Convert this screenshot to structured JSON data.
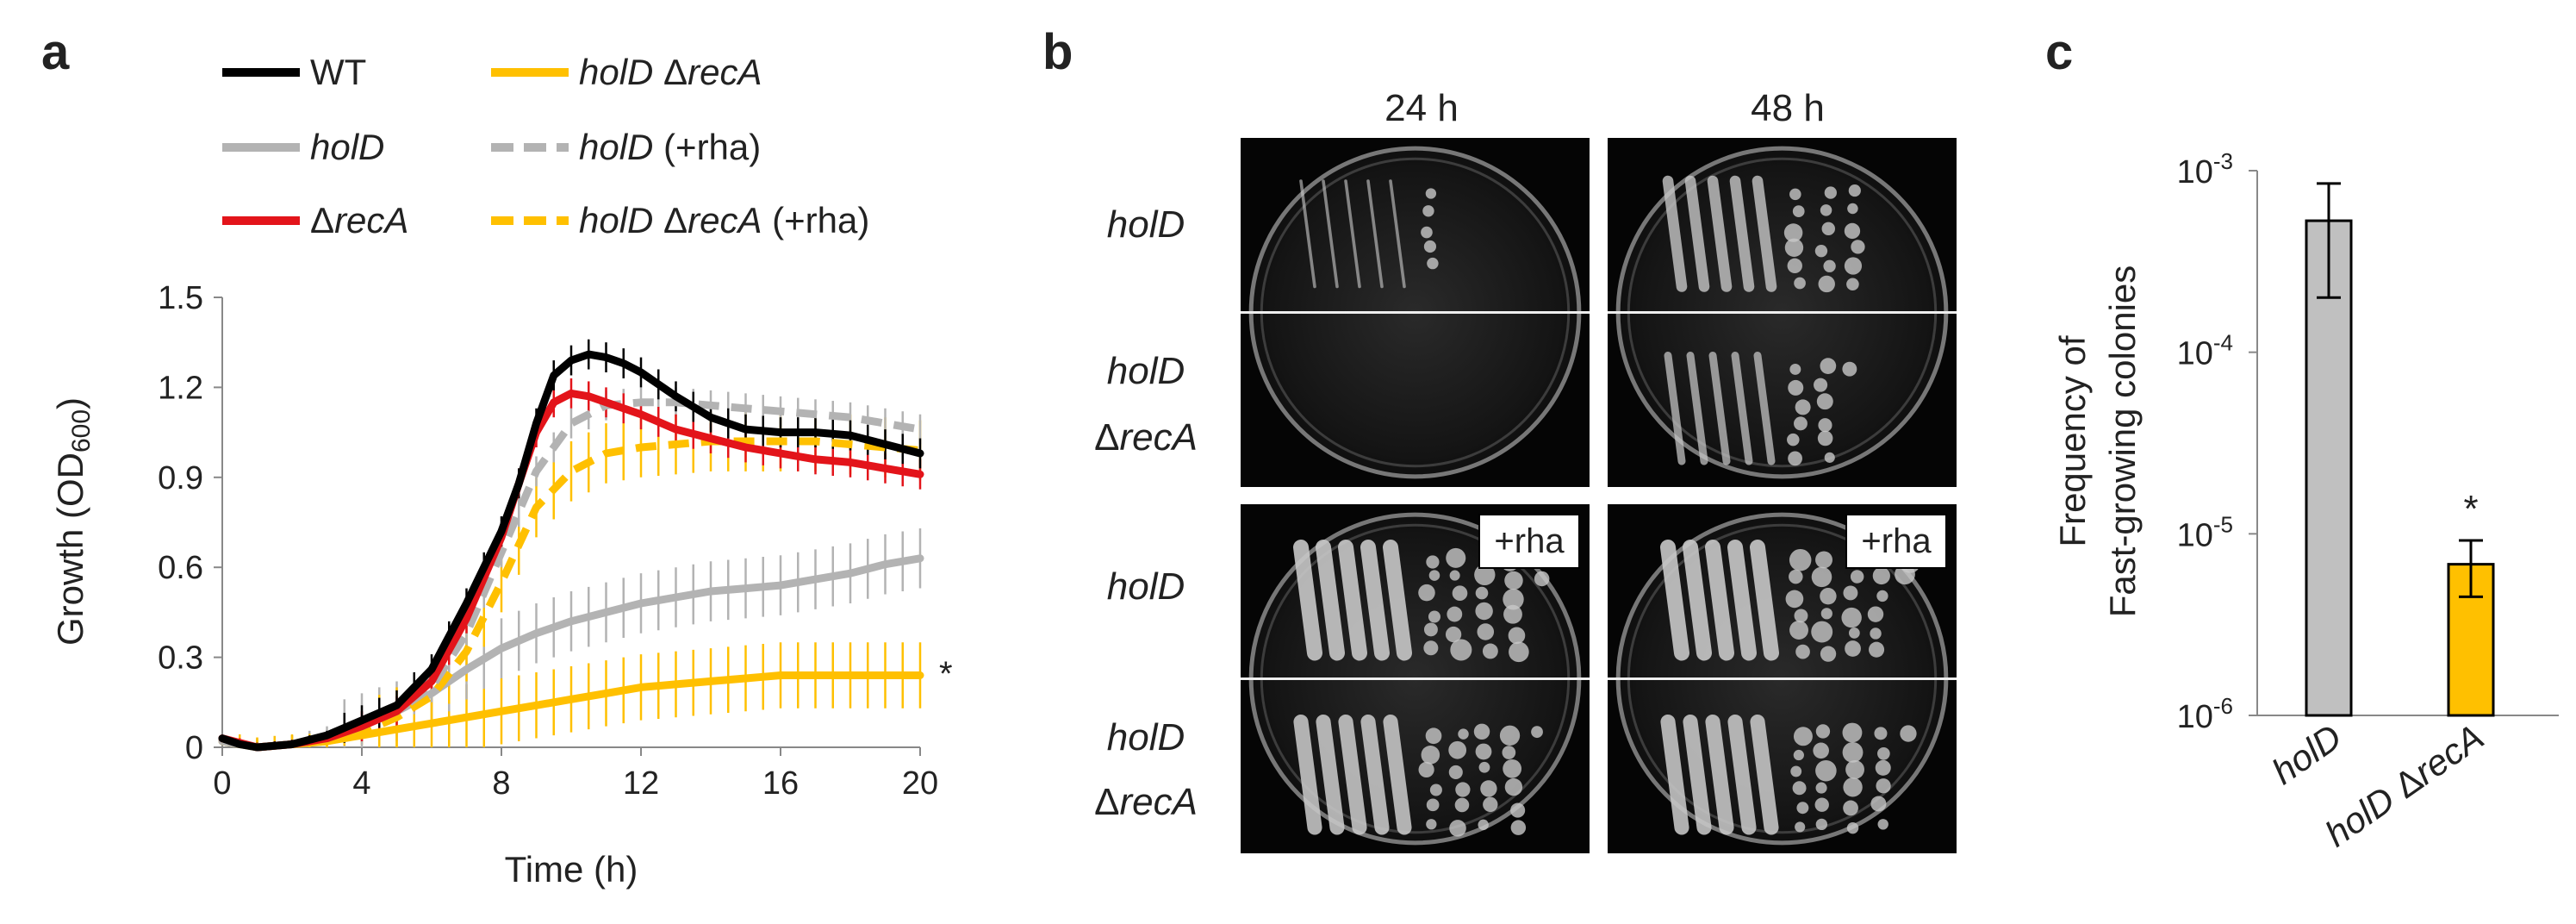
{
  "panels": {
    "a": "a",
    "b": "b",
    "c": "c"
  },
  "chart_data": [
    {
      "type": "line",
      "panel": "a",
      "xlabel": "Time (h)",
      "ylabel_main": "Growth (OD",
      "ylabel_sub": "600",
      "ylabel_close": ")",
      "xlim": [
        0,
        20
      ],
      "ylim": [
        0,
        1.5
      ],
      "xticks": [
        "0",
        "4",
        "8",
        "12",
        "16",
        "20"
      ],
      "yticks": [
        "0",
        "0.3",
        "0.6",
        "0.9",
        "1.2",
        "1.5"
      ],
      "annotation": "*",
      "legend": [
        {
          "prefix": "WT",
          "italic": "",
          "suffix": ""
        },
        {
          "prefix": "",
          "italic": "holD",
          "suffix": ""
        },
        {
          "prefix": "Δ",
          "italic": "recA",
          "suffix": ""
        },
        {
          "prefix": "",
          "italic": "holD",
          "suffix": " Δ",
          "italic2": "recA",
          "suffix2": ""
        },
        {
          "prefix": "",
          "italic": "holD",
          "suffix": " (+rha)",
          "italic2": "",
          "suffix2": ""
        },
        {
          "prefix": "",
          "italic": "holD",
          "suffix": " Δ",
          "italic2": "recA",
          "suffix2": " (+rha)"
        }
      ],
      "colors": {
        "wt": "#000000",
        "holD": "#b3b3b3",
        "recA": "#e3141a",
        "holD_recA": "#ffc000"
      },
      "series": [
        {
          "key": "wt",
          "color": "#000000",
          "dashed": false,
          "errorbar": 0.05,
          "x": [
            0,
            0.5,
            1,
            2,
            3,
            4,
            5,
            6,
            7,
            8,
            8.5,
            9,
            9.5,
            10,
            10.5,
            11,
            11.5,
            12,
            13,
            14,
            15,
            16,
            17,
            18,
            19,
            20
          ],
          "y": [
            0.03,
            0.01,
            0.0,
            0.01,
            0.04,
            0.09,
            0.14,
            0.26,
            0.48,
            0.72,
            0.88,
            1.08,
            1.24,
            1.29,
            1.31,
            1.3,
            1.28,
            1.25,
            1.17,
            1.1,
            1.06,
            1.05,
            1.05,
            1.04,
            1.01,
            0.98
          ]
        },
        {
          "key": "holD",
          "color": "#b3b3b3",
          "dashed": false,
          "errorbar": 0.1,
          "x": [
            0,
            1,
            2,
            3,
            4,
            5,
            6,
            7,
            8,
            9,
            10,
            11,
            12,
            13,
            14,
            15,
            16,
            17,
            18,
            19,
            20
          ],
          "y": [
            0.02,
            0.0,
            0.01,
            0.04,
            0.08,
            0.12,
            0.18,
            0.26,
            0.33,
            0.38,
            0.42,
            0.45,
            0.48,
            0.5,
            0.52,
            0.53,
            0.54,
            0.56,
            0.58,
            0.61,
            0.63
          ]
        },
        {
          "key": "recA",
          "color": "#e3141a",
          "dashed": false,
          "errorbar": 0.05,
          "x": [
            0,
            1,
            2,
            3,
            4,
            5,
            6,
            7,
            8,
            8.5,
            9,
            9.5,
            10,
            10.5,
            11,
            12,
            13,
            14,
            15,
            16,
            17,
            18,
            19,
            20
          ],
          "y": [
            0.03,
            0.0,
            0.01,
            0.03,
            0.07,
            0.12,
            0.22,
            0.43,
            0.7,
            0.88,
            1.05,
            1.15,
            1.18,
            1.17,
            1.15,
            1.11,
            1.06,
            1.03,
            1.0,
            0.98,
            0.96,
            0.95,
            0.93,
            0.91
          ]
        },
        {
          "key": "holD_recA",
          "color": "#ffc000",
          "dashed": false,
          "errorbar": 0.11,
          "x": [
            0,
            1,
            2,
            3,
            4,
            5,
            6,
            7,
            8,
            9,
            10,
            11,
            12,
            13,
            14,
            15,
            16,
            17,
            18,
            19,
            20
          ],
          "y": [
            0.02,
            0.0,
            0.01,
            0.02,
            0.04,
            0.06,
            0.08,
            0.1,
            0.12,
            0.14,
            0.16,
            0.18,
            0.2,
            0.21,
            0.22,
            0.23,
            0.24,
            0.24,
            0.24,
            0.24,
            0.24
          ]
        },
        {
          "key": "holD_rha",
          "color": "#b3b3b3",
          "dashed": true,
          "errorbar": 0.05,
          "x": [
            0,
            1,
            2,
            3,
            4,
            5,
            6,
            7,
            8,
            9,
            10,
            11,
            12,
            13,
            14,
            15,
            16,
            17,
            18,
            19,
            20
          ],
          "y": [
            0.02,
            0.0,
            0.01,
            0.03,
            0.07,
            0.12,
            0.2,
            0.38,
            0.65,
            0.92,
            1.08,
            1.14,
            1.15,
            1.15,
            1.14,
            1.13,
            1.12,
            1.11,
            1.1,
            1.08,
            1.06
          ]
        },
        {
          "key": "holD_recA_rha",
          "color": "#ffc000",
          "dashed": true,
          "errorbar": 0.1,
          "x": [
            0,
            1,
            2,
            3,
            4,
            5,
            6,
            7,
            8,
            9,
            10,
            11,
            12,
            13,
            14,
            15,
            16,
            17,
            18,
            19,
            20
          ],
          "y": [
            0.02,
            0.0,
            0.01,
            0.02,
            0.05,
            0.1,
            0.17,
            0.32,
            0.55,
            0.8,
            0.92,
            0.98,
            1.0,
            1.01,
            1.02,
            1.02,
            1.02,
            1.02,
            1.01,
            1.0,
            0.99
          ]
        }
      ]
    },
    {
      "type": "bar",
      "panel": "c",
      "ylabel_line1": "Frequency of",
      "ylabel_line2": "Fast-growing colonies",
      "yscale": "log",
      "ylim": [
        1e-06,
        0.001
      ],
      "yticks": [
        {
          "base": "10",
          "exp": "-3",
          "value": 0.001
        },
        {
          "base": "10",
          "exp": "-4",
          "value": 0.0001
        },
        {
          "base": "10",
          "exp": "-5",
          "value": 1e-05
        },
        {
          "base": "10",
          "exp": "-6",
          "value": 1e-06
        }
      ],
      "categories": [
        {
          "italic": "holD",
          "italic2": ""
        },
        {
          "italic": "holD",
          "sep": " Δ",
          "italic2": "recA"
        }
      ],
      "values": [
        0.00053,
        6.8e-06
      ],
      "error_low": [
        0.0002,
        4.5e-06
      ],
      "error_high": [
        0.00085,
        9.2e-06
      ],
      "colors": [
        "#c0c0c0",
        "#ffc000"
      ],
      "annotation": "*"
    }
  ],
  "plates": {
    "col_labels": [
      "24 h",
      "48 h"
    ],
    "row_labels": [
      {
        "italic": "holD",
        "prefix": "",
        "italic2": ""
      },
      {
        "italic": "holD",
        "prefix": "Δ",
        "italic2": "recA"
      },
      {
        "italic": "holD",
        "prefix": "",
        "italic2": ""
      },
      {
        "italic": "holD",
        "prefix": "Δ",
        "italic2": "recA"
      }
    ],
    "rha_tag": "+rha"
  }
}
